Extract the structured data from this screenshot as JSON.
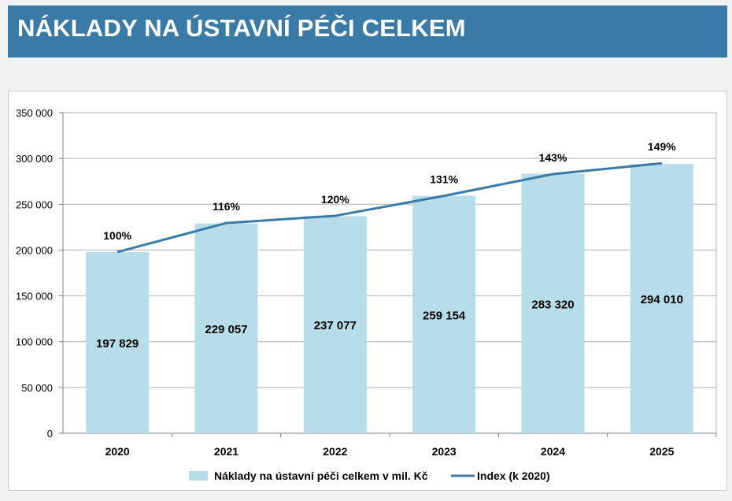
{
  "header": {
    "title": "NÁKLADY NA ÚSTAVNÍ PÉČI CELKEM"
  },
  "colors": {
    "banner": "#3a7aa6",
    "bar": "#b7dde8",
    "line": "#3a7aa6",
    "grid": "#b0b0b0"
  },
  "chart_data": {
    "type": "bar",
    "categories": [
      "2020",
      "2021",
      "2022",
      "2023",
      "2024",
      "2025"
    ],
    "series": [
      {
        "name": "Náklady na ústavní péči celkem v mil. Kč",
        "type": "bar",
        "values": [
          197829,
          229057,
          237077,
          259154,
          283320,
          294010
        ],
        "labels": [
          "197 829",
          "229 057",
          "237 077",
          "259 154",
          "283 320",
          "294 010"
        ]
      },
      {
        "name": "Index (k 2020)",
        "type": "line",
        "values": [
          100,
          116,
          120,
          131,
          143,
          149
        ],
        "labels": [
          "100%",
          "116%",
          "120%",
          "131%",
          "143%",
          "149%"
        ]
      }
    ],
    "ylim": [
      0,
      350000
    ],
    "yticks": [
      0,
      50000,
      100000,
      150000,
      200000,
      250000,
      300000,
      350000
    ],
    "ytick_labels": [
      "0",
      "50 000",
      "100 000",
      "150 000",
      "200 000",
      "250 000",
      "300 000",
      "350 000"
    ],
    "xlabel": "",
    "ylabel": "",
    "grid": true,
    "legend_position": "bottom"
  }
}
